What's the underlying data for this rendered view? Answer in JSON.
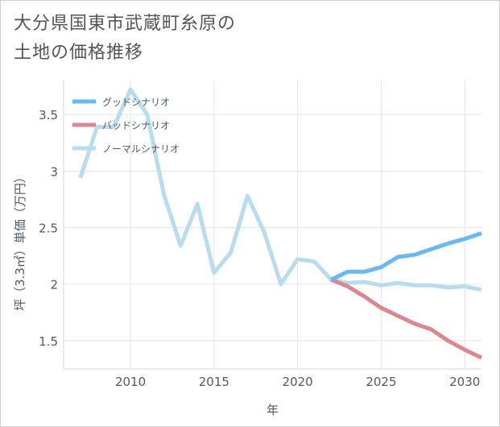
{
  "title_line1": "大分県国東市武蔵町糸原の",
  "title_line2": "土地の価格推移",
  "chart_data": {
    "type": "line",
    "xlabel": "年",
    "ylabel": "坪（3.3㎡）単価（万円）",
    "xlim": [
      2006,
      2031
    ],
    "ylim": [
      1.25,
      3.8
    ],
    "xticks": [
      2010,
      2015,
      2020,
      2025,
      2030
    ],
    "yticks": [
      1.5,
      2,
      2.5,
      3,
      3.5
    ],
    "ytick_labels": [
      "1.5",
      "2",
      "2.5",
      "3",
      "3.5"
    ],
    "grid": true,
    "legend_position": "top-left",
    "series": [
      {
        "name": "グッドシナリオ",
        "color": "#6ab8ee",
        "x": [
          2022,
          2023,
          2024,
          2025,
          2026,
          2027,
          2028,
          2029,
          2030,
          2031
        ],
        "y": [
          2.04,
          2.11,
          2.11,
          2.15,
          2.24,
          2.26,
          2.31,
          2.36,
          2.4,
          2.45
        ]
      },
      {
        "name": "バッドシナリオ",
        "color": "#dc8790",
        "x": [
          2022,
          2023,
          2024,
          2025,
          2026,
          2027,
          2028,
          2029,
          2030,
          2031
        ],
        "y": [
          2.04,
          1.98,
          1.89,
          1.79,
          1.72,
          1.65,
          1.6,
          1.5,
          1.42,
          1.35
        ]
      },
      {
        "name": "ノーマルシナリオ",
        "color": "#b8dcee",
        "x": [
          2007,
          2008,
          2009,
          2010,
          2011,
          2012,
          2013,
          2014,
          2015,
          2016,
          2017,
          2018,
          2019,
          2020,
          2021,
          2022,
          2023,
          2024,
          2025,
          2026,
          2027,
          2028,
          2029,
          2030,
          2031
        ],
        "y": [
          2.94,
          3.39,
          3.39,
          3.72,
          3.5,
          2.79,
          2.34,
          2.71,
          2.1,
          2.28,
          2.78,
          2.46,
          2.0,
          2.22,
          2.2,
          2.04,
          2.01,
          2.02,
          1.99,
          2.01,
          1.99,
          1.99,
          1.97,
          1.98,
          1.95
        ]
      }
    ]
  }
}
